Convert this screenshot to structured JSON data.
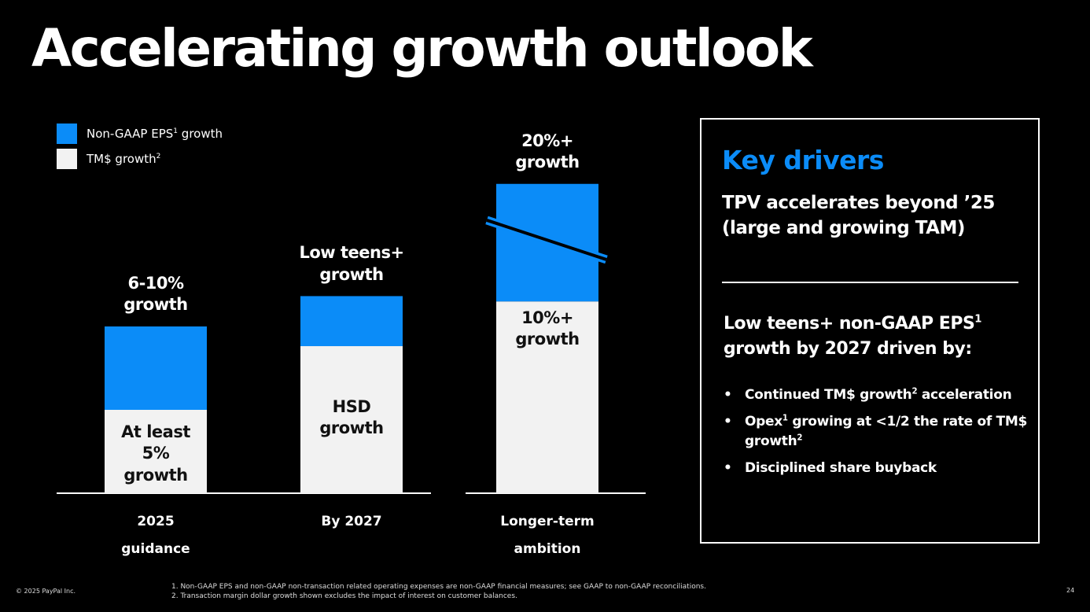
{
  "title": "Accelerating growth outlook",
  "colors": {
    "eps": "#0b8cf8",
    "tm": "#f2f2f2",
    "background": "#000000"
  },
  "legend": [
    {
      "label": "Non-GAAP EPS",
      "sup": "1",
      "suffix": " growth",
      "color": "#0b8cf8"
    },
    {
      "label": "TM$ growth",
      "sup": "2",
      "suffix": "",
      "color": "#f2f2f2"
    }
  ],
  "chart_data": {
    "type": "bar",
    "stacked": true,
    "categories": [
      "2025 guidance",
      "By 2027",
      "Longer-term ambition"
    ],
    "series": [
      {
        "name": "TM$ growth",
        "color": "#f2f2f2",
        "values": [
          5,
          9,
          10
        ],
        "labels": [
          "At least\n5%\ngrowth",
          "HSD\ngrowth",
          "10%+\ngrowth"
        ]
      },
      {
        "name": "Non-GAAP EPS growth",
        "color": "#0b8cf8",
        "values": [
          10,
          15,
          20
        ],
        "labels": [
          "6-10%\ngrowth",
          "Low teens+\ngrowth",
          "20%+\ngrowth"
        ]
      }
    ],
    "axis_break": {
      "category": 2
    },
    "ylim": [
      0,
      20
    ],
    "grid": false,
    "legend_position": "top-left"
  },
  "category_labels": [
    "2025\nguidance",
    "By 2027",
    "Longer-term\nambition"
  ],
  "drivers": {
    "title": "Key drivers",
    "subtitle": "TPV accelerates beyond ’25 (large and growing TAM)",
    "lead": "Low teens+ non-GAAP EPS",
    "lead_sup": "1",
    "lead_rest": " growth by 2027 driven by:",
    "bullet_char": "•",
    "items": [
      {
        "text": "Continued TM$ growth",
        "sup": "2",
        "rest": " acceleration"
      },
      {
        "text": "Opex",
        "sup": "1",
        "rest": " growing at <1/2 the rate of TM$ growth",
        "sup2": "2"
      },
      {
        "text": "Disciplined share buyback",
        "sup": "",
        "rest": ""
      }
    ]
  },
  "footer": {
    "copyright": "© 2025 PayPal Inc.",
    "footnotes": [
      "1.   Non-GAAP EPS and non-GAAP non-transaction related operating expenses are non-GAAP financial measures; see GAAP to non-GAAP reconciliations.",
      "2.   Transaction margin dollar growth shown excludes the impact of interest on customer balances."
    ],
    "page": "24"
  }
}
